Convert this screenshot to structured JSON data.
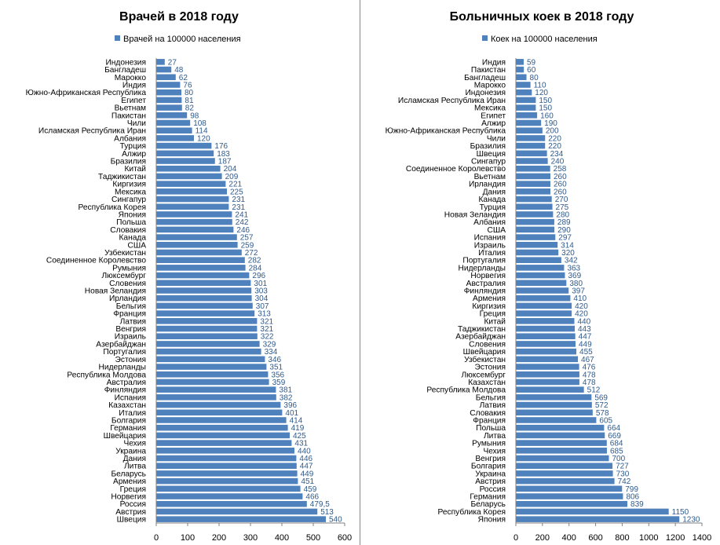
{
  "chart_data": [
    {
      "type": "bar",
      "orientation": "horizontal",
      "title": "Врачей в 2018 году",
      "legend": "Врачей на 100000 населения",
      "legend_position": "top",
      "xlim": [
        0,
        600
      ],
      "x_ticks": [
        "0",
        "100",
        "200",
        "300",
        "400",
        "500",
        "600"
      ],
      "grid": false,
      "color": "#4f81bd",
      "categories": [
        "Индонезия",
        "Бангладеш",
        "Марокко",
        "Индия",
        "Южно-Африканская  Республика",
        "Египет",
        "Вьетнам",
        "Пакистан",
        "Чили",
        "Исламская Республика Иран",
        "Албания",
        "Турция",
        "Алжир",
        "Бразилия",
        "Китай",
        "Таджикистан",
        "Киргизия",
        "Мексика",
        "Сингапур",
        "Республика Корея",
        "Япония",
        "Польша",
        "Словакия",
        "Канада",
        "США",
        "Узбекистан",
        "Соединенное  Королевство",
        "Румыния",
        "Люксембург",
        "Словения",
        "Новая Зеландия",
        "Ирландия",
        "Бельгия",
        "Франция",
        "Латвия",
        "Венгрия",
        "Израиль",
        "Азербайджан",
        "Португалия",
        "Эстония",
        "Нидерланды",
        "Республика Молдова",
        "Австралия",
        "Финляндия",
        "Испания",
        "Казахстан",
        "Италия",
        "Болгария",
        "Германия",
        "Швейцария",
        "Чехия",
        "Украина",
        "Дания",
        "Литва",
        "Беларусь",
        "Армения",
        "Греция",
        "Норвегия",
        "Россия",
        "Австрия",
        "Швеция"
      ],
      "values": [
        27,
        48,
        62,
        76,
        80,
        81,
        82,
        98,
        108,
        114,
        120,
        176,
        183,
        187,
        204,
        209,
        221,
        225,
        231,
        231,
        241,
        242,
        246,
        257,
        259,
        272,
        282,
        284,
        296,
        301,
        303,
        304,
        307,
        313,
        321,
        321,
        322,
        329,
        334,
        346,
        351,
        356,
        359,
        381,
        382,
        396,
        401,
        414,
        419,
        425,
        431,
        440,
        446,
        447,
        449,
        451,
        459,
        466,
        479.5,
        513,
        540
      ],
      "value_labels": [
        "27",
        "48",
        "62",
        "76",
        "80",
        "81",
        "82",
        "98",
        "108",
        "114",
        "120",
        "176",
        "183",
        "187",
        "204",
        "209",
        "221",
        "225",
        "231",
        "231",
        "241",
        "242",
        "246",
        "257",
        "259",
        "272",
        "282",
        "284",
        "296",
        "301",
        "303",
        "304",
        "307",
        "313",
        "321",
        "321",
        "322",
        "329",
        "334",
        "346",
        "351",
        "356",
        "359",
        "381",
        "382",
        "396",
        "401",
        "414",
        "419",
        "425",
        "431",
        "440",
        "446",
        "447",
        "449",
        "451",
        "459",
        "466",
        "479,5",
        "513",
        "540"
      ]
    },
    {
      "type": "bar",
      "orientation": "horizontal",
      "title": "Больничных коек в 2018 году",
      "legend": "Коек на 100000 населения",
      "legend_position": "top",
      "xlim": [
        0,
        1400
      ],
      "x_ticks": [
        "0",
        "200",
        "400",
        "600",
        "800",
        "1000",
        "1200",
        "1400"
      ],
      "grid": false,
      "color": "#4f81bd",
      "categories": [
        "Индия",
        "Пакистан",
        "Бангладеш",
        "Марокко",
        "Индонезия",
        "Исламская Республика Иран",
        "Мексика",
        "Египет",
        "Алжир",
        "Южно-Африканская  Республика",
        "Чили",
        "Бразилия",
        "Швеция",
        "Сингапур",
        "Соединенное  Королевство",
        "Вьетнам",
        "Ирландия",
        "Дания",
        "Канада",
        "Турция",
        "Новая Зеландия",
        "Албания",
        "США",
        "Испания",
        "Израиль",
        "Италия",
        "Португалия",
        "Нидерланды",
        "Норвегия",
        "Австралия",
        "Финляндия",
        "Армения",
        "Киргизия",
        "Греция",
        "Китай",
        "Таджикистан",
        "Азербайджан",
        "Словения",
        "Швейцария",
        "Узбекистан",
        "Эстония",
        "Люксембург",
        "Казахстан",
        "Республика Молдова",
        "Бельгия",
        "Латвия",
        "Словакия",
        "Франция",
        "Польша",
        "Литва",
        "Румыния",
        "Чехия",
        "Венгрия",
        "Болгария",
        "Украина",
        "Австрия",
        "Россия",
        "Германия",
        "Беларусь",
        "Республика Корея",
        "Япония"
      ],
      "values": [
        59,
        60,
        80,
        110,
        120,
        150,
        150,
        160,
        190,
        200,
        220,
        220,
        234,
        240,
        258,
        260,
        260,
        260,
        270,
        275,
        280,
        289,
        290,
        297,
        314,
        320,
        342,
        363,
        369,
        380,
        397,
        410,
        420,
        420,
        440,
        443,
        447,
        449,
        455,
        467,
        476,
        478,
        478,
        512,
        569,
        572,
        578,
        605,
        664,
        669,
        684,
        685,
        700,
        727,
        730,
        742,
        799,
        806,
        839,
        1150,
        1230
      ],
      "value_labels": [
        "59",
        "60",
        "80",
        "110",
        "120",
        "150",
        "150",
        "160",
        "190",
        "200",
        "220",
        "220",
        "234",
        "240",
        "258",
        "260",
        "260",
        "260",
        "270",
        "275",
        "280",
        "289",
        "290",
        "297",
        "314",
        "320",
        "342",
        "363",
        "369",
        "380",
        "397",
        "410",
        "420",
        "420",
        "440",
        "443",
        "447",
        "449",
        "455",
        "467",
        "476",
        "478",
        "478",
        "512",
        "569",
        "572",
        "578",
        "605",
        "664",
        "669",
        "684",
        "685",
        "700",
        "727",
        "730",
        "742",
        "799",
        "806",
        "839",
        "1150",
        "1230"
      ]
    }
  ]
}
